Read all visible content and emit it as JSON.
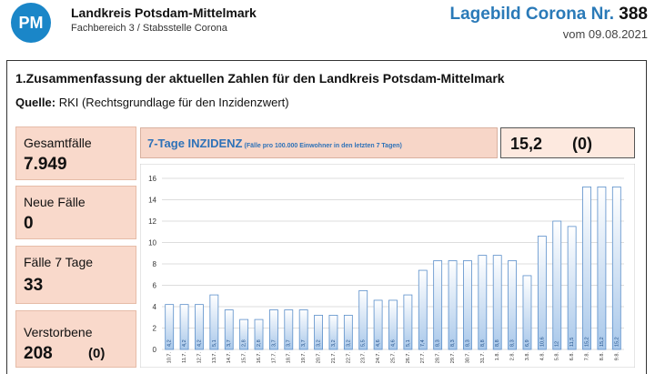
{
  "header": {
    "logo_text": "PM",
    "org_title": "Landkreis Potsdam-Mittelmark",
    "org_subtitle": "Fachbereich 3 / Stabsstelle Corona",
    "report_title_prefix": "Lagebild Corona Nr.",
    "report_number": "388",
    "report_date": "vom 09.08.2021"
  },
  "section": {
    "title": "1.Zusammenfassung der aktuellen Zahlen für den Landkreis Potsdam-Mittelmark",
    "source_label": "Quelle:",
    "source_text": " RKI (Rechtsgrundlage für den Inzidenzwert)"
  },
  "stats": [
    {
      "label": "Gesamtfälle",
      "value": "7.949"
    },
    {
      "label": "Neue Fälle",
      "value": "0"
    },
    {
      "label": "Fälle 7 Tage",
      "value": "33"
    },
    {
      "label": "Verstorbene",
      "value": "208",
      "extra": "(0)"
    }
  ],
  "incidence": {
    "title": "7-Tage INZIDENZ",
    "note": "(Fälle pro 100.000 Einwohner in den letzten 7 Tagen)",
    "value": "15,2",
    "previous": "(0)"
  },
  "colors": {
    "accent": "#2e72b8",
    "box_fill": "#f9d9cb",
    "bar_top": "#ffffff",
    "bar_bottom": "#a9c8ea",
    "bar_stroke": "#5b8fca"
  },
  "chart_data": {
    "type": "bar",
    "categories": [
      "10.7.",
      "11.7.",
      "12.7.",
      "13.7.",
      "14.7.",
      "15.7.",
      "16.7.",
      "17.7.",
      "18.7.",
      "19.7.",
      "20.7.",
      "21.7.",
      "22.7.",
      "23.7.",
      "24.7.",
      "25.7.",
      "26.7.",
      "27.7.",
      "28.7.",
      "29.7.",
      "30.7.",
      "31.7.",
      "1.8.",
      "2.8.",
      "3.8.",
      "4.8.",
      "5.8.",
      "6.8.",
      "7.8.",
      "8.8.",
      "9.8."
    ],
    "values": [
      4.2,
      4.2,
      4.2,
      5.1,
      3.7,
      2.8,
      2.8,
      3.7,
      3.7,
      3.7,
      3.2,
      3.2,
      3.2,
      5.5,
      4.6,
      4.6,
      5.1,
      7.4,
      8.3,
      8.3,
      8.3,
      8.8,
      8.8,
      8.3,
      6.9,
      10.6,
      12.0,
      11.5,
      15.2,
      15.2,
      15.2
    ],
    "value_labels": [
      "4,2",
      "4,2",
      "4,2",
      "5,1",
      "3,7",
      "2,8",
      "2,8",
      "3,7",
      "3,7",
      "3,7",
      "3,2",
      "3,2",
      "3,2",
      "5,5",
      "4,6",
      "4,6",
      "5,1",
      "7,4",
      "8,3",
      "8,3",
      "8,3",
      "8,8",
      "8,8",
      "8,3",
      "6,9",
      "10,6",
      "12",
      "11,5",
      "15,2",
      "15,2",
      "15,2"
    ],
    "yticks": [
      "0",
      "2",
      "4",
      "6",
      "8",
      "10",
      "12",
      "14",
      "16"
    ],
    "ylim": [
      0,
      16
    ],
    "grid": true,
    "title": "",
    "xlabel": "",
    "ylabel": ""
  }
}
